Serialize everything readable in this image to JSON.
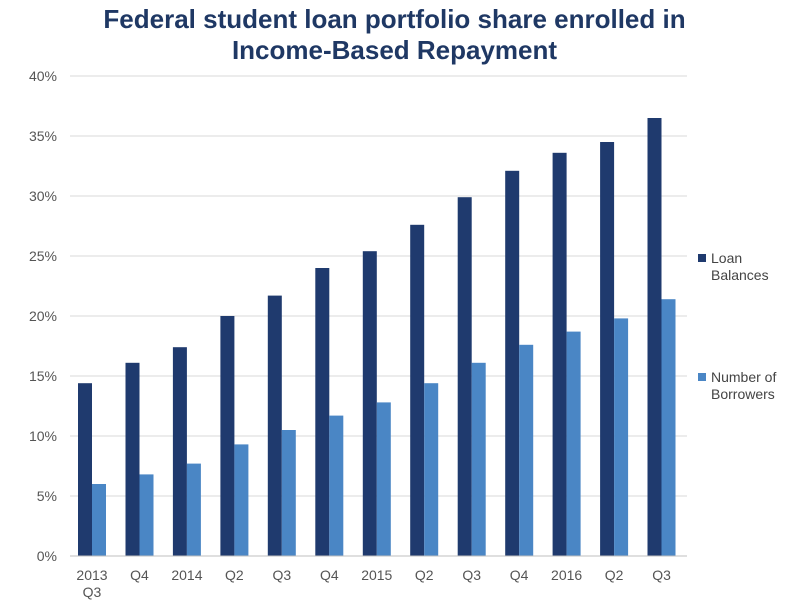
{
  "chart_data": {
    "type": "bar",
    "title_lines": [
      "Federal student loan portfolio share enrolled in",
      "Income-Based Repayment"
    ],
    "xlabel": "",
    "ylabel": "",
    "ylim": [
      0,
      40
    ],
    "yticks": [
      "0%",
      "5%",
      "10%",
      "15%",
      "20%",
      "25%",
      "30%",
      "35%",
      "40%"
    ],
    "categories": [
      [
        "2013",
        "Q3"
      ],
      [
        "Q4"
      ],
      [
        "2014"
      ],
      [
        "Q2"
      ],
      [
        "Q3"
      ],
      [
        "Q4"
      ],
      [
        "2015"
      ],
      [
        "Q2"
      ],
      [
        "Q3"
      ],
      [
        "Q4"
      ],
      [
        "2016"
      ],
      [
        "Q2"
      ],
      [
        "Q3"
      ]
    ],
    "grid": true,
    "legend_position": "right",
    "series": [
      {
        "name_lines": [
          "Loan",
          "Balances"
        ],
        "color": "#1f3a6e",
        "values": [
          14.4,
          16.1,
          17.4,
          20.0,
          21.7,
          24.0,
          25.4,
          27.6,
          29.9,
          32.1,
          33.6,
          34.5,
          36.5
        ]
      },
      {
        "name_lines": [
          "Number of",
          "Borrowers"
        ],
        "color": "#4a86c5",
        "values": [
          6.0,
          6.8,
          7.7,
          9.3,
          10.5,
          11.7,
          12.8,
          14.4,
          16.1,
          17.6,
          18.7,
          19.8,
          21.4
        ]
      }
    ]
  }
}
